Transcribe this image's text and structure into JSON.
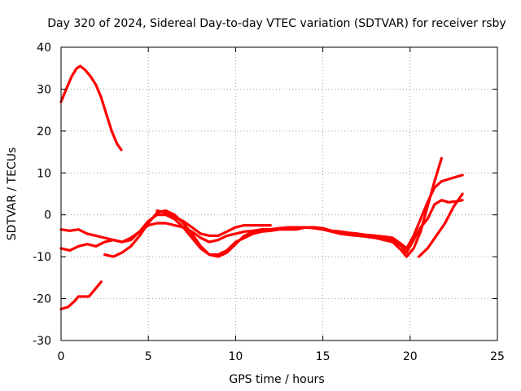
{
  "chart_data": {
    "type": "line",
    "title": "Day 320 of 2024, Sidereal Day-to-day VTEC variation (SDTVAR) for receiver rsby",
    "xlabel": "GPS time / hours",
    "ylabel": "SDTVAR / TECUs",
    "xlim": [
      0,
      25
    ],
    "ylim": [
      -30,
      40
    ],
    "xticks": [
      "0",
      "5",
      "10",
      "15",
      "20",
      "25"
    ],
    "yticks": [
      "-30",
      "-20",
      "-10",
      "0",
      "10",
      "20",
      "30",
      "40"
    ],
    "grid": true,
    "color": "#ff0000",
    "series": [
      {
        "name": "s1",
        "x": [
          0.0,
          0.3,
          0.6,
          0.9,
          1.1,
          1.4,
          1.7,
          2.0,
          2.3,
          2.6,
          2.9,
          3.2,
          3.45
        ],
        "y": [
          27,
          30,
          33,
          35,
          35.5,
          34.5,
          33,
          31,
          28,
          24,
          20,
          17,
          15.5
        ]
      },
      {
        "name": "s2",
        "x": [
          0.0,
          0.4,
          0.8,
          1.0,
          1.2,
          1.6,
          2.0,
          2.3
        ],
        "y": [
          -22.5,
          -22,
          -20.5,
          -19.5,
          -19.5,
          -19.5,
          -17.5,
          -16
        ]
      },
      {
        "name": "s3",
        "x": [
          0.0,
          0.5,
          1.0,
          1.5,
          2.0,
          2.5,
          3.0,
          3.5,
          4.0,
          4.5,
          5.0,
          5.5,
          6.0,
          6.5,
          7.0,
          7.5,
          8.0,
          8.5,
          9.0,
          9.5,
          10.0,
          10.5,
          11.0,
          11.5,
          12.0,
          12.5,
          13.0,
          13.5,
          14.0,
          14.5,
          15.0,
          15.5,
          16.0,
          16.5,
          17.0,
          17.5,
          18.0,
          18.5,
          19.0,
          19.5,
          19.8
        ],
        "y": [
          -3.5,
          -3.8,
          -3.5,
          -4.5,
          -5.0,
          -5.5,
          -6.0,
          -6.5,
          -5.5,
          -4.0,
          -2.5,
          -2.0,
          -2.0,
          -2.5,
          -3.0,
          -4.0,
          -5.5,
          -6.5,
          -6.0,
          -5.0,
          -4.5,
          -4.0,
          -3.8,
          -3.5,
          -3.5,
          -3.2,
          -3.0,
          -3.0,
          -3.0,
          -3.2,
          -3.5,
          -3.8,
          -4.0,
          -4.5,
          -4.8,
          -5.0,
          -5.0,
          -5.2,
          -5.5,
          -7.0,
          -8.0
        ]
      },
      {
        "name": "s4",
        "x": [
          0.0,
          0.5,
          1.0,
          1.5,
          2.0,
          2.5,
          3.0,
          3.5,
          4.0,
          4.5,
          5.0,
          5.5,
          6.0,
          6.5,
          7.0,
          7.5,
          8.0,
          8.5,
          9.0,
          9.5,
          10.0,
          10.5,
          11.0,
          11.5,
          12.0,
          12.5,
          13.0,
          13.5,
          14.0,
          14.5,
          15.0,
          15.5,
          16.0,
          16.5,
          17.0,
          17.5,
          18.0,
          18.5,
          19.0,
          19.5,
          19.8
        ],
        "y": [
          -8.0,
          -8.5,
          -7.5,
          -7.0,
          -7.5,
          -6.5,
          -6.0,
          -6.5,
          -6.0,
          -4.0,
          -1.5,
          0.0,
          0.0,
          -1.0,
          -3.0,
          -5.5,
          -8.0,
          -9.5,
          -9.5,
          -8.5,
          -6.5,
          -5.5,
          -4.5,
          -4.0,
          -3.8,
          -3.5,
          -3.5,
          -3.2,
          -3.0,
          -3.0,
          -3.2,
          -3.8,
          -4.0,
          -4.3,
          -4.5,
          -4.8,
          -5.0,
          -5.5,
          -6.0,
          -7.5,
          -9.0
        ]
      },
      {
        "name": "s5",
        "x": [
          2.5,
          3.0,
          3.5,
          4.0,
          4.5,
          5.0,
          5.5,
          6.0,
          6.5,
          7.0,
          7.5,
          8.0,
          8.5,
          9.0,
          9.5,
          10.0,
          10.5,
          11.0,
          11.5,
          12.0,
          12.5,
          13.0,
          13.5,
          14.0,
          14.5,
          15.0,
          15.5,
          16.0,
          16.5,
          17.0,
          17.5,
          18.0,
          18.5,
          19.0,
          19.5,
          19.8,
          20.2,
          20.6,
          21.0,
          21.4,
          21.8
        ],
        "y": [
          -9.5,
          -10.0,
          -9.0,
          -7.5,
          -5.0,
          -2.0,
          0.5,
          1.0,
          0.0,
          -2.0,
          -4.5,
          -7.5,
          -9.5,
          -10.0,
          -9.0,
          -7.0,
          -5.0,
          -4.0,
          -3.5,
          -3.5,
          -3.2,
          -3.5,
          -3.5,
          -3.0,
          -3.0,
          -3.5,
          -4.0,
          -4.5,
          -4.8,
          -5.0,
          -5.2,
          -5.5,
          -6.0,
          -6.5,
          -8.5,
          -10.0,
          -8.0,
          -4.0,
          2.0,
          8.0,
          13.5
        ]
      },
      {
        "name": "s6",
        "x": [
          5.5,
          6.0,
          6.5,
          7.0,
          7.5,
          8.0,
          8.5,
          9.0,
          9.5,
          10.0,
          10.5,
          11.0,
          11.5,
          12.0
        ],
        "y": [
          1.0,
          0.5,
          -0.5,
          -1.5,
          -3.0,
          -4.5,
          -5.0,
          -5.0,
          -4.0,
          -3.0,
          -2.5,
          -2.5,
          -2.5,
          -2.5
        ]
      },
      {
        "name": "s7",
        "x": [
          19.8,
          20.2,
          20.6,
          21.0,
          21.4,
          21.8,
          22.2,
          22.6,
          23.0
        ],
        "y": [
          -8.0,
          -5.0,
          -1.0,
          3.0,
          6.5,
          8.0,
          8.5,
          9.0,
          9.5
        ]
      },
      {
        "name": "s8",
        "x": [
          19.8,
          20.2,
          20.6,
          21.0,
          21.4,
          21.8,
          22.2,
          22.6,
          23.0
        ],
        "y": [
          -9.0,
          -6.0,
          -3.0,
          -1.0,
          2.5,
          3.5,
          3.0,
          3.2,
          3.5
        ]
      },
      {
        "name": "s9",
        "x": [
          20.5,
          21.0,
          21.5,
          22.0,
          22.5,
          23.0
        ],
        "y": [
          -10.0,
          -8.0,
          -5.0,
          -2.0,
          2.0,
          5.0
        ]
      }
    ]
  }
}
